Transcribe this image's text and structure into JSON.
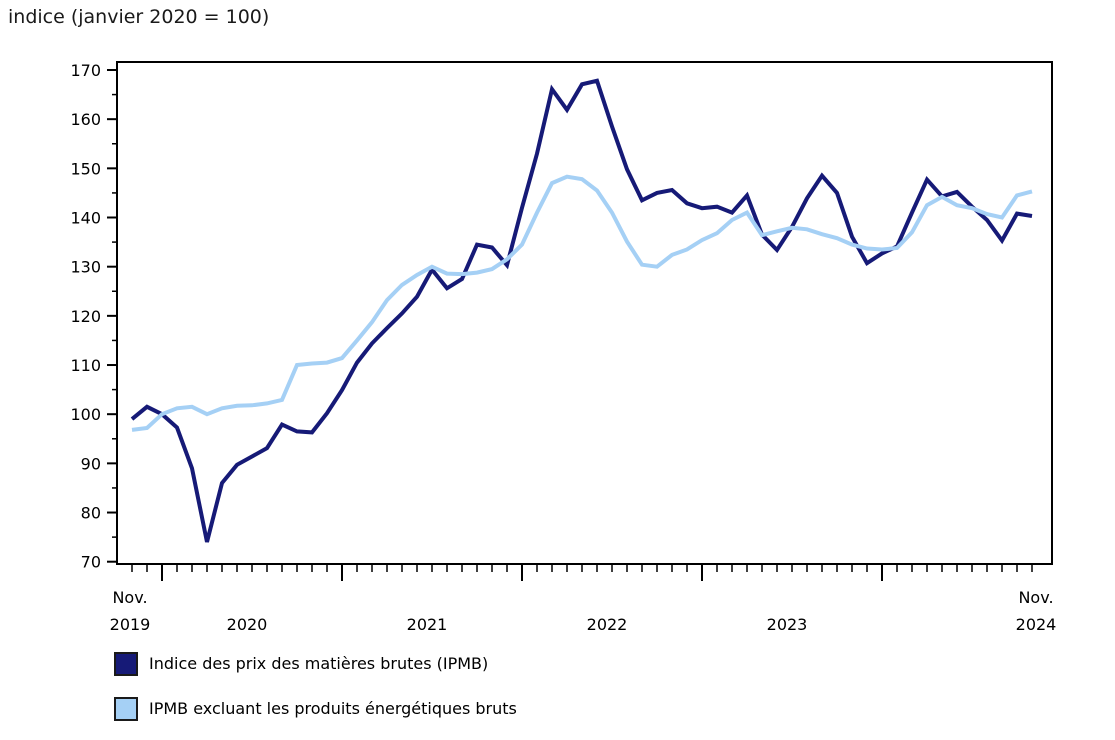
{
  "chart_data": {
    "type": "line",
    "title": "indice (janvier 2020 = 100)",
    "xlabel": "",
    "ylabel": "indice (janvier 2020 = 100)",
    "ylim": [
      70,
      170
    ],
    "y_tick_step": 10,
    "y_minor_tick_step": 5,
    "grid": "off",
    "legend_position": "bottom-left",
    "y_ticks": [
      "70",
      "80",
      "90",
      "100",
      "110",
      "120",
      "130",
      "140",
      "150",
      "160",
      "170"
    ],
    "x_axis": {
      "first_label": {
        "line1": "Nov.",
        "line2": "2019"
      },
      "year_labels": [
        "2020",
        "2021",
        "2022",
        "2023"
      ],
      "last_label": {
        "line1": "Nov.",
        "line2": "2024"
      }
    },
    "months": [
      "2019-11",
      "2019-12",
      "2020-01",
      "2020-02",
      "2020-03",
      "2020-04",
      "2020-05",
      "2020-06",
      "2020-07",
      "2020-08",
      "2020-09",
      "2020-10",
      "2020-11",
      "2020-12",
      "2021-01",
      "2021-02",
      "2021-03",
      "2021-04",
      "2021-05",
      "2021-06",
      "2021-07",
      "2021-08",
      "2021-09",
      "2021-10",
      "2021-11",
      "2021-12",
      "2022-01",
      "2022-02",
      "2022-03",
      "2022-04",
      "2022-05",
      "2022-06",
      "2022-07",
      "2022-08",
      "2022-09",
      "2022-10",
      "2022-11",
      "2022-12",
      "2023-01",
      "2023-02",
      "2023-03",
      "2023-04",
      "2023-05",
      "2023-06",
      "2023-07",
      "2023-08",
      "2023-09",
      "2023-10",
      "2023-11",
      "2023-12",
      "2024-01",
      "2024-02",
      "2024-03",
      "2024-04",
      "2024-05",
      "2024-06",
      "2024-07",
      "2024-08",
      "2024-09",
      "2024-10",
      "2024-11"
    ],
    "series": [
      {
        "name": "Indice des prix des matières brutes (IPMB)",
        "color": "#161a77",
        "values": [
          99.0,
          101.5,
          100.0,
          97.3,
          89.0,
          74.0,
          86.0,
          89.7,
          91.4,
          93.1,
          97.9,
          96.5,
          96.3,
          100.2,
          104.9,
          110.5,
          114.4,
          117.5,
          120.5,
          123.9,
          129.4,
          125.6,
          127.5,
          134.5,
          133.9,
          130.3,
          142.0,
          153.0,
          166.1,
          161.9,
          167.1,
          167.8,
          158.5,
          149.8,
          143.5,
          145.0,
          145.6,
          142.9,
          141.9,
          142.2,
          141.0,
          144.5,
          136.5,
          133.4,
          138.1,
          143.9,
          148.5,
          145.0,
          136.1,
          130.7,
          132.7,
          134.1,
          141.0,
          147.7,
          144.3,
          145.2,
          142.2,
          139.5,
          135.3,
          140.8,
          140.3
        ]
      },
      {
        "name": "IPMB excluant les produits énergétiques bruts",
        "color": "#a5d0f5",
        "values": [
          96.8,
          97.2,
          100.0,
          101.2,
          101.5,
          100.0,
          101.2,
          101.7,
          101.8,
          102.2,
          102.9,
          110.0,
          110.3,
          110.5,
          111.4,
          115.0,
          118.7,
          123.2,
          126.3,
          128.3,
          130.0,
          128.6,
          128.5,
          128.8,
          129.5,
          131.5,
          134.5,
          141.0,
          147.0,
          148.3,
          147.8,
          145.5,
          141.0,
          135.1,
          130.4,
          130.0,
          132.4,
          133.5,
          135.4,
          136.8,
          139.5,
          141.0,
          136.4,
          137.2,
          137.9,
          137.6,
          136.6,
          135.8,
          134.5,
          133.7,
          133.5,
          133.8,
          137.0,
          142.5,
          144.2,
          142.5,
          141.9,
          140.7,
          140.0,
          144.5,
          145.3
        ]
      }
    ]
  }
}
